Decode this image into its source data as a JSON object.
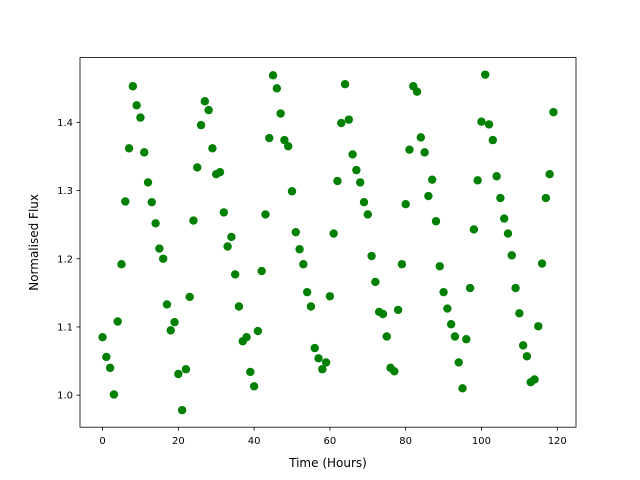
{
  "chart_data": {
    "type": "scatter",
    "x_label": "Time (Hours)",
    "y_label": "Normalised Flux",
    "color": "#008000",
    "x": [
      0,
      1,
      2,
      3,
      4,
      5,
      6,
      7,
      8,
      9,
      10,
      11,
      12,
      13,
      14,
      15,
      16,
      17,
      18,
      19,
      20,
      21,
      22,
      23,
      24,
      25,
      26,
      27,
      28,
      29,
      30,
      31,
      32,
      33,
      34,
      35,
      36,
      37,
      38,
      39,
      40,
      41,
      42,
      43,
      44,
      45,
      46,
      47,
      48,
      49,
      50,
      51,
      52,
      53,
      54,
      55,
      56,
      57,
      58,
      59,
      60,
      61,
      62,
      63,
      64,
      65,
      66,
      67,
      68,
      69,
      70,
      71,
      72,
      73,
      74,
      75,
      76,
      77,
      78,
      79,
      80,
      81,
      82,
      83,
      84,
      85,
      86,
      87,
      88,
      89,
      90,
      91,
      92,
      93,
      94,
      95,
      96,
      97,
      98,
      99,
      100,
      101,
      102,
      103,
      104,
      105,
      106,
      107,
      108,
      109,
      110,
      111,
      112,
      113,
      114,
      115,
      116,
      117,
      118,
      119
    ],
    "values": [
      1.085,
      1.056,
      1.04,
      1.001,
      1.108,
      1.192,
      1.284,
      1.362,
      1.453,
      1.425,
      1.407,
      1.356,
      1.312,
      1.283,
      1.252,
      1.215,
      1.2,
      1.133,
      1.095,
      1.107,
      1.031,
      0.978,
      1.038,
      1.144,
      1.256,
      1.334,
      1.396,
      1.431,
      1.418,
      1.362,
      1.324,
      1.327,
      1.268,
      1.218,
      1.232,
      1.177,
      1.13,
      1.079,
      1.085,
      1.034,
      1.013,
      1.094,
      1.182,
      1.265,
      1.377,
      1.469,
      1.45,
      1.413,
      1.374,
      1.365,
      1.299,
      1.239,
      1.214,
      1.192,
      1.151,
      1.13,
      1.069,
      1.054,
      1.038,
      1.048,
      1.145,
      1.237,
      1.314,
      1.399,
      1.456,
      1.404,
      1.353,
      1.33,
      1.312,
      1.283,
      1.265,
      1.204,
      1.166,
      1.122,
      1.119,
      1.086,
      1.04,
      1.035,
      1.125,
      1.192,
      1.28,
      1.36,
      1.453,
      1.445,
      1.378,
      1.356,
      1.292,
      1.316,
      1.255,
      1.189,
      1.151,
      1.127,
      1.104,
      1.086,
      1.048,
      1.01,
      1.082,
      1.157,
      1.243,
      1.315,
      1.401,
      1.47,
      1.397,
      1.374,
      1.321,
      1.289,
      1.259,
      1.237,
      1.205,
      1.157,
      1.12,
      1.073,
      1.057,
      1.019,
      1.023,
      1.101,
      1.193,
      1.289,
      1.324,
      1.415
    ],
    "xlim": [
      -5.95,
      124.95
    ],
    "xticks": [
      0,
      20,
      40,
      60,
      80,
      100,
      120
    ],
    "ylim": [
      0.953,
      1.495
    ],
    "yticks": [
      {
        "value": 1,
        "label": "1.0"
      },
      {
        "value": 1.1,
        "label": "1.1"
      },
      {
        "value": 1.2,
        "label": "1.2"
      },
      {
        "value": 1.3,
        "label": "1.3"
      },
      {
        "value": 1.4,
        "label": "1.4"
      }
    ]
  }
}
